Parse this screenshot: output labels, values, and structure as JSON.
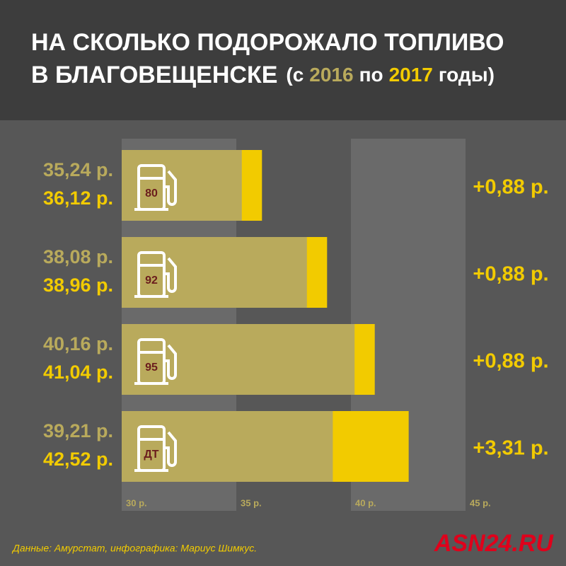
{
  "chart_data": {
    "type": "bar",
    "title": [
      "НА СКОЛЬКО ПОДОРОЖАЛО ТОПЛИВО",
      "В БЛАГОВЕЩЕНСКЕ"
    ],
    "subtitle_parts": [
      "(с",
      "по",
      "годы)"
    ],
    "categories": [
      "80",
      "92",
      "95",
      "ДТ"
    ],
    "series": [
      {
        "name": "2016",
        "color": "#b9aa5c",
        "values": [
          35.24,
          38.08,
          40.16,
          39.21
        ],
        "value_labels": [
          "35,24 р.",
          "38,08 р.",
          "40,16 р.",
          "39,21 р."
        ]
      },
      {
        "name": "2017",
        "color": "#f2cb00",
        "values": [
          36.12,
          38.96,
          41.04,
          42.52
        ],
        "value_labels": [
          "36,12 р.",
          "38,96 р.",
          "41,04 р.",
          "42,52 р."
        ]
      }
    ],
    "annotations": [
      "+0,88 р.",
      "+0,88 р.",
      "+0,88 р.",
      "+3,31 р."
    ],
    "xlim": [
      30,
      45
    ],
    "xticks": [
      {
        "value": 30,
        "label": "30 р."
      },
      {
        "value": 35,
        "label": "35 р."
      },
      {
        "value": 40,
        "label": "40 р."
      },
      {
        "value": 45,
        "label": "45 р."
      }
    ],
    "source": "Данные: Амурстат, инфографика: Мариус Шимкус.",
    "logo": "ASN24.RU"
  }
}
